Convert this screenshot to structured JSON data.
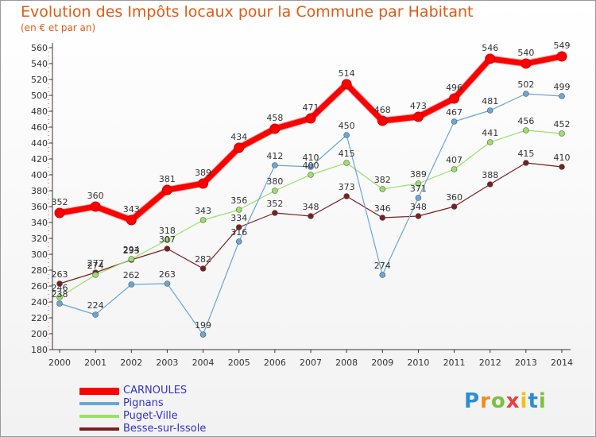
{
  "title": "Evolution des Impôts locaux pour la Commune par Habitant",
  "subtitle": "(en € et par an)",
  "logo": {
    "text": "Proxiti",
    "letter_colors": [
      "#2a8fd1",
      "#f28b1a",
      "#7cc142",
      "#e64141",
      "#f2c01a",
      "#2a8fd1",
      "#7cc142"
    ]
  },
  "chart_data": {
    "type": "line",
    "title": "Evolution des Impôts locaux pour la Commune par Habitant",
    "subtitle": "(en € et par an)",
    "xlabel": "",
    "ylabel": "",
    "ylim": [
      180,
      560
    ],
    "ytick_step": 20,
    "grid": false,
    "legend_position": "bottom-left",
    "x": [
      "2000",
      "2001",
      "2002",
      "2003",
      "2004",
      "2005",
      "2006",
      "2007",
      "2008",
      "2009",
      "2010",
      "2011",
      "2012",
      "2013",
      "2014"
    ],
    "series": [
      {
        "name": "CARNOULES",
        "color": "#ff0000",
        "width": 7,
        "values": [
          352,
          360,
          343,
          381,
          389,
          434,
          458,
          471,
          514,
          468,
          473,
          496,
          546,
          540,
          549
        ]
      },
      {
        "name": "Pignans",
        "color": "#6aa6d6",
        "width": 1.2,
        "values": [
          238,
          224,
          262,
          263,
          199,
          316,
          412,
          410,
          450,
          274,
          371,
          467,
          481,
          502,
          499
        ]
      },
      {
        "name": "Puget-Ville",
        "color": "#9be06a",
        "width": 1.2,
        "values": [
          246,
          274,
          294,
          318,
          343,
          356,
          380,
          400,
          415,
          382,
          389,
          407,
          441,
          456,
          452
        ]
      },
      {
        "name": "Besse-sur-Issole",
        "color": "#7a1f1f",
        "width": 1.2,
        "values": [
          263,
          277,
          293,
          307,
          282,
          334,
          352,
          348,
          373,
          346,
          348,
          360,
          388,
          415,
          410
        ]
      }
    ]
  }
}
